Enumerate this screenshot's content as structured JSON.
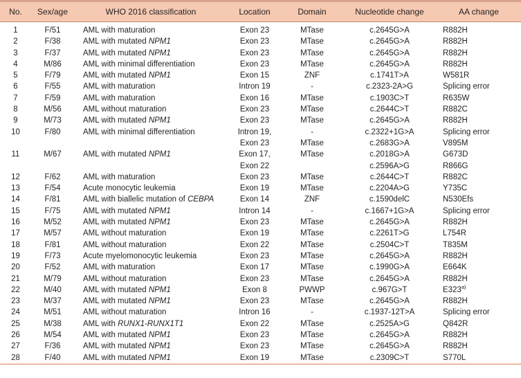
{
  "colors": {
    "header_bg": "#f5c9b2",
    "top_border": "#d8a189",
    "header_rule": "#bf8d77",
    "bottom_border": "#ecb8a0",
    "text": "#262220"
  },
  "table": {
    "headers": {
      "no": "No.",
      "sex": "Sex/age",
      "who": "WHO 2016 classification",
      "location": "Location",
      "domain": "Domain",
      "nucleotide": "Nucleotide change",
      "aa": "AA change"
    },
    "rows": [
      {
        "no": "1",
        "sex": "F/51",
        "who_pre": "AML with maturation",
        "who_gene": "",
        "loc": "Exon 23",
        "dom": "MTase",
        "nt": "c.2645G>A",
        "aa": "R882H"
      },
      {
        "no": "2",
        "sex": "F/38",
        "who_pre": "AML with mutated ",
        "who_gene": "NPM1",
        "loc": "Exon 23",
        "dom": "MTase",
        "nt": "c.2645G>A",
        "aa": "R882H"
      },
      {
        "no": "3",
        "sex": "F/37",
        "who_pre": "AML with mutated ",
        "who_gene": "NPM1",
        "loc": "Exon 23",
        "dom": "MTase",
        "nt": "c.2645G>A",
        "aa": "R882H"
      },
      {
        "no": "4",
        "sex": "M/86",
        "who_pre": "AML with minimal differentiation",
        "who_gene": "",
        "loc": "Exon 23",
        "dom": "MTase",
        "nt": "c.2645G>A",
        "aa": "R882H"
      },
      {
        "no": "5",
        "sex": "F/79",
        "who_pre": "AML with mutated ",
        "who_gene": "NPM1",
        "loc": "Exon 15",
        "dom": "ZNF",
        "nt": "c.1741T>A",
        "aa": "W581R"
      },
      {
        "no": "6",
        "sex": "F/55",
        "who_pre": "AML with maturation",
        "who_gene": "",
        "loc": "Intron 19",
        "dom": "-",
        "nt": "c.2323-2A>G",
        "aa": "Splicing error"
      },
      {
        "no": "7",
        "sex": "F/59",
        "who_pre": "AML with maturation",
        "who_gene": "",
        "loc": "Exon 16",
        "dom": "MTase",
        "nt": "c.1903C>T",
        "aa": "R635W"
      },
      {
        "no": "8",
        "sex": "M/56",
        "who_pre": "AML without maturation",
        "who_gene": "",
        "loc": "Exon 23",
        "dom": "MTase",
        "nt": "c.2644C>T",
        "aa": "R882C"
      },
      {
        "no": "9",
        "sex": "M/73",
        "who_pre": "AML with mutated ",
        "who_gene": "NPM1",
        "loc": "Exon 23",
        "dom": "MTase",
        "nt": "c.2645G>A",
        "aa": "R882H"
      },
      {
        "no": "10",
        "sex": "F/80",
        "who_pre": "AML with minimal differentiation",
        "who_gene": "",
        "loc": [
          "Intron 19,",
          "Exon 23"
        ],
        "dom": [
          "-",
          "MTase"
        ],
        "nt": [
          "c.2322+1G>A",
          "c.2683G>A"
        ],
        "aa": [
          "Splicing error",
          "V895M"
        ]
      },
      {
        "no": "11",
        "sex": "M/67",
        "who_pre": "AML with mutated ",
        "who_gene": "NPM1",
        "loc": [
          "Exon 17,",
          "Exon 22"
        ],
        "dom": [
          "MTase",
          ""
        ],
        "nt": [
          "c.2018G>A",
          "c.2596A>G"
        ],
        "aa": [
          "G673D",
          "R866G"
        ]
      },
      {
        "no": "12",
        "sex": "F/62",
        "who_pre": "AML with maturation",
        "who_gene": "",
        "loc": "Exon 23",
        "dom": "MTase",
        "nt": "c.2644C>T",
        "aa": "R882C"
      },
      {
        "no": "13",
        "sex": "F/54",
        "who_pre": "Acute monocytic leukemia",
        "who_gene": "",
        "loc": "Exon 19",
        "dom": "MTase",
        "nt": "c.2204A>G",
        "aa": "Y735C"
      },
      {
        "no": "14",
        "sex": "F/81",
        "who_pre": "AML with biallelic mutation of ",
        "who_gene": "CEBPA",
        "loc": "Exon 14",
        "dom": "ZNF",
        "nt": "c.1590delC",
        "aa": "N530Efs"
      },
      {
        "no": "15",
        "sex": "F/75",
        "who_pre": "AML with mutated ",
        "who_gene": "NPM1",
        "loc": "Intron 14",
        "dom": "-",
        "nt": "c.1667+1G>A",
        "aa": "Splicing error"
      },
      {
        "no": "16",
        "sex": "M/52",
        "who_pre": "AML with mutated ",
        "who_gene": "NPM1",
        "loc": "Exon 23",
        "dom": "MTase",
        "nt": "c.2645G>A",
        "aa": "R882H"
      },
      {
        "no": "17",
        "sex": "M/57",
        "who_pre": "AML without maturation",
        "who_gene": "",
        "loc": "Exon 19",
        "dom": "MTase",
        "nt": "c.2261T>G",
        "aa": "L754R"
      },
      {
        "no": "18",
        "sex": "F/81",
        "who_pre": "AML without maturation",
        "who_gene": "",
        "loc": "Exon 22",
        "dom": "MTase",
        "nt": "c.2504C>T",
        "aa": "T835M"
      },
      {
        "no": "19",
        "sex": "F/73",
        "who_pre": "Acute myelomonocytic leukemia",
        "who_gene": "",
        "loc": "Exon 23",
        "dom": "MTase",
        "nt": "c.2645G>A",
        "aa": "R882H"
      },
      {
        "no": "20",
        "sex": "F/52",
        "who_pre": "AML with maturation",
        "who_gene": "",
        "loc": "Exon 17",
        "dom": "MTase",
        "nt": "c.1990G>A",
        "aa": "E664K"
      },
      {
        "no": "21",
        "sex": "M/79",
        "who_pre": "AML without maturation",
        "who_gene": "",
        "loc": "Exon 23",
        "dom": "MTase",
        "nt": "c.2645G>A",
        "aa": "R882H"
      },
      {
        "no": "22",
        "sex": "M/40",
        "who_pre": "AML with mutated ",
        "who_gene": "NPM1",
        "loc": "Exon 8",
        "dom": "PWWP",
        "nt": "c.967G>T",
        "aa": "E323",
        "aa_sup": "a)"
      },
      {
        "no": "23",
        "sex": "M/37",
        "who_pre": "AML with mutated ",
        "who_gene": "NPM1",
        "loc": "Exon 23",
        "dom": "MTase",
        "nt": "c.2645G>A",
        "aa": "R882H"
      },
      {
        "no": "24",
        "sex": "M/51",
        "who_pre": "AML without maturation",
        "who_gene": "",
        "loc": "Intron 16",
        "dom": "-",
        "nt": "c.1937-12T>A",
        "aa": "Splicing error"
      },
      {
        "no": "25",
        "sex": "M/38",
        "who_pre": "AML with ",
        "who_gene": "RUNX1-RUNX1T1",
        "loc": "Exon 22",
        "dom": "MTase",
        "nt": "c.2525A>G",
        "aa": "Q842R"
      },
      {
        "no": "26",
        "sex": "M/54",
        "who_pre": "AML with mutated ",
        "who_gene": "NPM1",
        "loc": "Exon 23",
        "dom": "MTase",
        "nt": "c.2645G>A",
        "aa": "R882H"
      },
      {
        "no": "27",
        "sex": "F/36",
        "who_pre": "AML with mutated ",
        "who_gene": "NPM1",
        "loc": "Exon 23",
        "dom": "MTase",
        "nt": "c.2645G>A",
        "aa": "R882H"
      },
      {
        "no": "28",
        "sex": "F/40",
        "who_pre": "AML with mutated ",
        "who_gene": "NPM1",
        "loc": "Exon 19",
        "dom": "MTase",
        "nt": "c.2309C>T",
        "aa": "S770L"
      }
    ]
  }
}
